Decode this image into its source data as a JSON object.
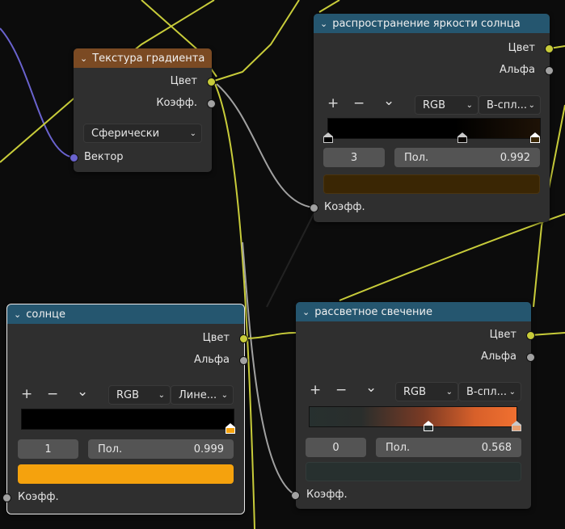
{
  "colors": {
    "wire_color": "#c8cc3a",
    "wire_value": "#a1a1a1",
    "wire_vector": "#6a63cf",
    "header_texture": "#7b4a23",
    "header_converter": "#25566f"
  },
  "gradient_node": {
    "title": "Текстура градиента",
    "outputs": [
      "Цвет",
      "Коэфф."
    ],
    "mode": "Сферически",
    "input": "Вектор"
  },
  "sun_spread_node": {
    "title": "распространение яркости солнца",
    "outputs": [
      "Цвет",
      "Альфа"
    ],
    "tools": {
      "add": "+",
      "remove": "−",
      "menu": "⌄"
    },
    "color_mode": "RGB",
    "interpolation": "B-спл...",
    "stop_index": "3",
    "pos_label": "Пол.",
    "pos_value": "0.992",
    "swatch_color": "#3a2604",
    "input": "Коэфф."
  },
  "sun_node": {
    "title": "солнце",
    "outputs": [
      "Цвет",
      "Альфа"
    ],
    "tools": {
      "add": "+",
      "remove": "−",
      "menu": "⌄"
    },
    "color_mode": "RGB",
    "interpolation": "Лине...",
    "stop_index": "1",
    "pos_label": "Пол.",
    "pos_value": "0.999",
    "swatch_color": "#f5a20d",
    "input": "Коэфф."
  },
  "dawn_glow_node": {
    "title": "рассветное свечение",
    "outputs": [
      "Цвет",
      "Альфа"
    ],
    "tools": {
      "add": "+",
      "remove": "−",
      "menu": "⌄"
    },
    "color_mode": "RGB",
    "interpolation": "B-спл...",
    "stop_index": "0",
    "pos_label": "Пол.",
    "pos_value": "0.568",
    "swatch_color": "#27302f",
    "input": "Коэфф."
  }
}
